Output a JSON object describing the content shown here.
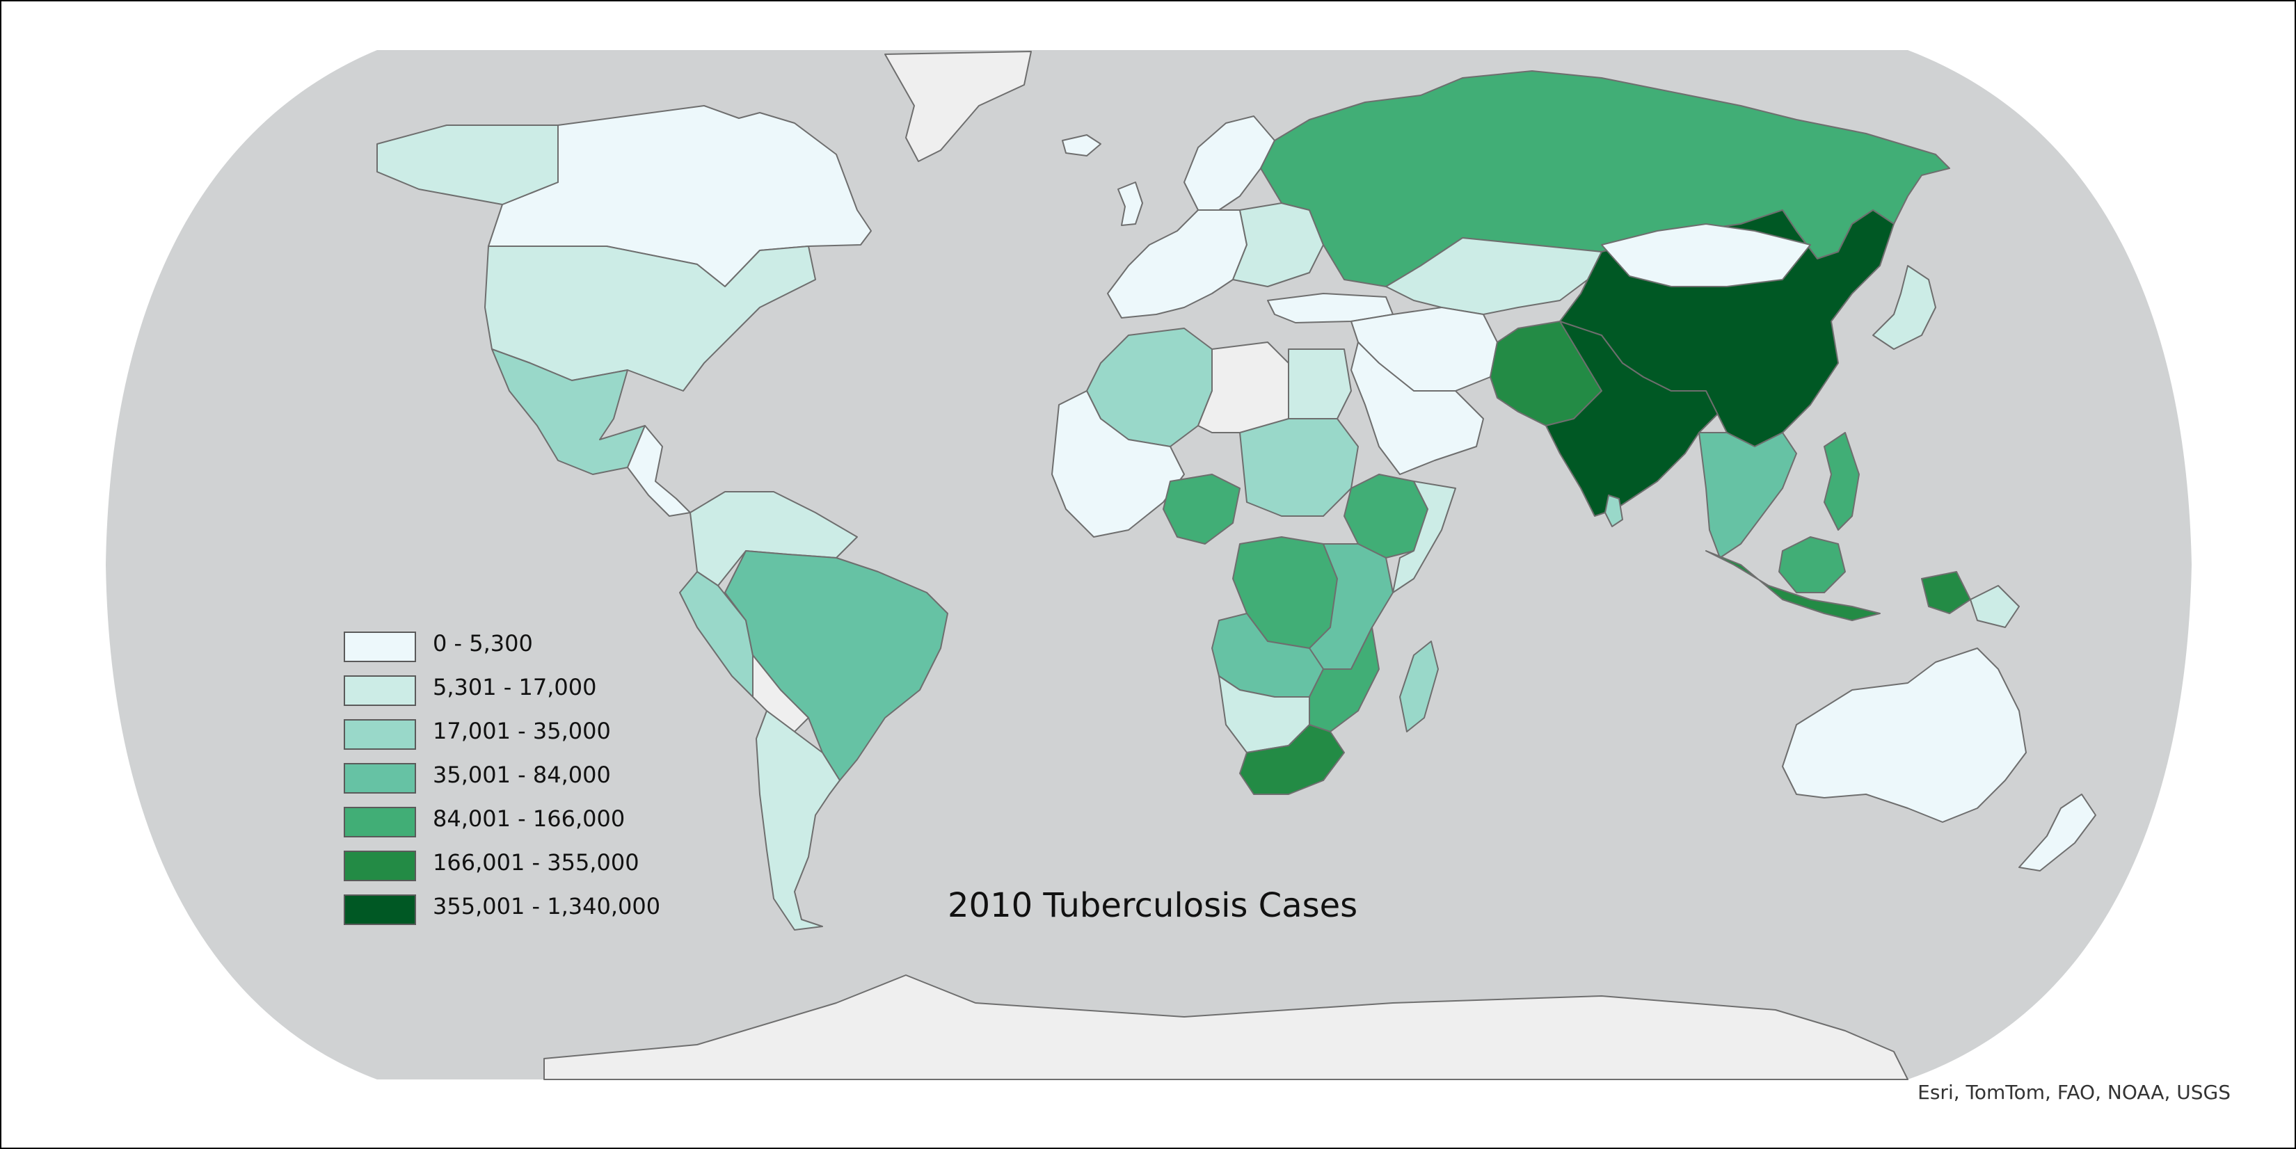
{
  "title": "2010 Tuberculosis Cases",
  "attribution": "Esri, TomTom, FAO, NOAA, USGS",
  "map": {
    "projection": "Robinson",
    "ocean_color": "#d0d2d3",
    "no_data_color": "#efefef",
    "border_color": "#6e6e6e",
    "background_color": "#ffffff"
  },
  "legend": {
    "classes": [
      {
        "label": "0 - 5,300",
        "min": 0,
        "max": 5300,
        "color": "#edf8fb"
      },
      {
        "label": "5,301 - 17,000",
        "min": 5301,
        "max": 17000,
        "color": "#ccece6"
      },
      {
        "label": "17,001 - 35,000",
        "min": 17001,
        "max": 35000,
        "color": "#99d8c9"
      },
      {
        "label": "35,001 - 84,000",
        "min": 35001,
        "max": 84000,
        "color": "#66c2a4"
      },
      {
        "label": "84,001 - 166,000",
        "min": 84001,
        "max": 166000,
        "color": "#41ae76"
      },
      {
        "label": "166,001 - 355,000",
        "min": 166001,
        "max": 355000,
        "color": "#238b45"
      },
      {
        "label": "355,001 - 1,340,000",
        "min": 355001,
        "max": 1340000,
        "color": "#005824"
      }
    ]
  }
}
